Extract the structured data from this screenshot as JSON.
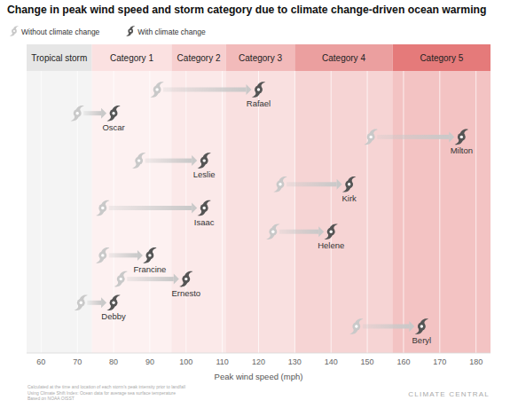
{
  "chart_data": {
    "type": "dumbbell",
    "title": "Change in peak wind speed and storm category due to climate change-driven ocean warming",
    "orientation": "horizontal",
    "categories": [
      "Rafael",
      "Oscar",
      "Milton",
      "Leslie",
      "Kirk",
      "Isaac",
      "Helene",
      "Francine",
      "Ernesto",
      "Debby",
      "Beryl"
    ],
    "series": [
      {
        "name": "Without climate change",
        "color": "#c9c9c9",
        "values": [
          92,
          70,
          151,
          87,
          126,
          77,
          124,
          77,
          82,
          71,
          147
        ]
      },
      {
        "name": "With climate change",
        "color": "#555555",
        "values": [
          120,
          80,
          176,
          105,
          145,
          105,
          140,
          90,
          100,
          80,
          165
        ]
      }
    ],
    "bands": [
      {
        "label": "Tropical storm",
        "from": 56,
        "to": 74,
        "color": "#e6e6e6"
      },
      {
        "label": "Category 1",
        "from": 74,
        "to": 96,
        "color": "#fbe1e1"
      },
      {
        "label": "Category 2",
        "from": 96,
        "to": 111,
        "color": "#f7cfcf"
      },
      {
        "label": "Category 3",
        "from": 111,
        "to": 130,
        "color": "#f2baba"
      },
      {
        "label": "Category 4",
        "from": 130,
        "to": 157,
        "color": "#eb9f9f"
      },
      {
        "label": "Category 5",
        "from": 157,
        "to": 184,
        "color": "#e57a7a"
      }
    ],
    "xlim": [
      56,
      184
    ],
    "xticks": [
      60,
      70,
      80,
      90,
      100,
      110,
      120,
      130,
      140,
      150,
      160,
      170,
      180
    ],
    "x_label": "Peak wind speed (mph)",
    "grid": true,
    "legend": "top-left",
    "footnote": [
      "Calculated at the time and location of each storm's peak intensity prior to landfall",
      "Using Climate Shift Index: Ocean data for average sea surface temperature",
      "Based on NOAA OISST"
    ],
    "source": "CLIMATE CENTRAL"
  }
}
